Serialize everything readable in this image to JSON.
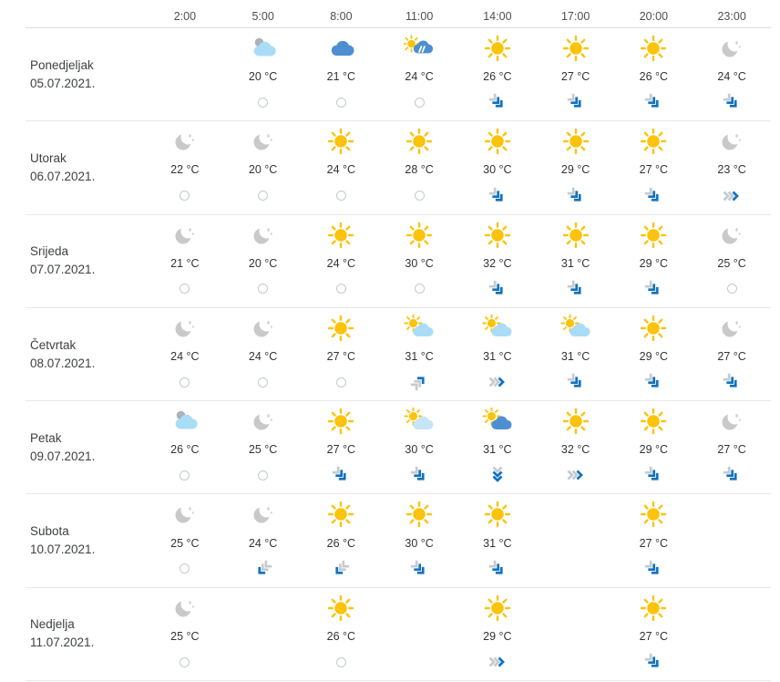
{
  "table": {
    "times": [
      "2:00",
      "5:00",
      "8:00",
      "11:00",
      "14:00",
      "17:00",
      "20:00",
      "23:00"
    ],
    "temperature_unit": "°C",
    "days": [
      {
        "name": "Ponedjeljak",
        "date": "05.07.2021.",
        "cells": [
          null,
          {
            "icon": "cloudy-light",
            "temp": "20 °C",
            "wind": {
              "type": "calm"
            }
          },
          {
            "icon": "cloudy-dark",
            "temp": "21 °C",
            "wind": {
              "type": "calm"
            }
          },
          {
            "icon": "sun-rain",
            "temp": "24 °C",
            "wind": {
              "type": "calm"
            }
          },
          {
            "icon": "sunny",
            "temp": "26 °C",
            "wind": {
              "type": "arrow",
              "dir": "se",
              "strength": 2
            }
          },
          {
            "icon": "sunny",
            "temp": "27 °C",
            "wind": {
              "type": "arrow",
              "dir": "se",
              "strength": 2
            }
          },
          {
            "icon": "sunny",
            "temp": "26 °C",
            "wind": {
              "type": "arrow",
              "dir": "se",
              "strength": 2
            }
          },
          {
            "icon": "clear-night",
            "temp": "24 °C",
            "wind": {
              "type": "arrow",
              "dir": "se",
              "strength": 2
            }
          }
        ]
      },
      {
        "name": "Utorak",
        "date": "06.07.2021.",
        "cells": [
          {
            "icon": "clear-night",
            "temp": "22 °C",
            "wind": {
              "type": "calm"
            }
          },
          {
            "icon": "clear-night",
            "temp": "20 °C",
            "wind": {
              "type": "calm"
            }
          },
          {
            "icon": "sunny",
            "temp": "24 °C",
            "wind": {
              "type": "calm"
            }
          },
          {
            "icon": "sunny",
            "temp": "28 °C",
            "wind": {
              "type": "calm"
            }
          },
          {
            "icon": "sunny",
            "temp": "30 °C",
            "wind": {
              "type": "arrow",
              "dir": "se",
              "strength": 2
            }
          },
          {
            "icon": "sunny",
            "temp": "29 °C",
            "wind": {
              "type": "arrow",
              "dir": "se",
              "strength": 2
            }
          },
          {
            "icon": "sunny",
            "temp": "27 °C",
            "wind": {
              "type": "arrow",
              "dir": "se",
              "strength": 2
            }
          },
          {
            "icon": "clear-night",
            "temp": "23 °C",
            "wind": {
              "type": "arrow",
              "dir": "e",
              "strength": 1
            }
          }
        ]
      },
      {
        "name": "Srijeda",
        "date": "07.07.2021.",
        "cells": [
          {
            "icon": "clear-night",
            "temp": "21 °C",
            "wind": {
              "type": "calm"
            }
          },
          {
            "icon": "clear-night",
            "temp": "20 °C",
            "wind": {
              "type": "calm"
            }
          },
          {
            "icon": "sunny",
            "temp": "24 °C",
            "wind": {
              "type": "calm"
            }
          },
          {
            "icon": "sunny",
            "temp": "30 °C",
            "wind": {
              "type": "calm"
            }
          },
          {
            "icon": "sunny",
            "temp": "32 °C",
            "wind": {
              "type": "arrow",
              "dir": "se",
              "strength": 2
            }
          },
          {
            "icon": "sunny",
            "temp": "31 °C",
            "wind": {
              "type": "arrow",
              "dir": "se",
              "strength": 2
            }
          },
          {
            "icon": "sunny",
            "temp": "29 °C",
            "wind": {
              "type": "arrow",
              "dir": "se",
              "strength": 2
            }
          },
          {
            "icon": "clear-night",
            "temp": "25 °C",
            "wind": {
              "type": "calm"
            }
          }
        ]
      },
      {
        "name": "Četvrtak",
        "date": "08.07.2021.",
        "cells": [
          {
            "icon": "clear-night",
            "temp": "24 °C",
            "wind": {
              "type": "calm"
            }
          },
          {
            "icon": "clear-night",
            "temp": "24 °C",
            "wind": {
              "type": "calm"
            }
          },
          {
            "icon": "sunny",
            "temp": "27 °C",
            "wind": {
              "type": "calm"
            }
          },
          {
            "icon": "sun-cloud",
            "temp": "31 °C",
            "wind": {
              "type": "arrow",
              "dir": "ne",
              "strength": 1
            }
          },
          {
            "icon": "sun-cloud",
            "temp": "31 °C",
            "wind": {
              "type": "arrow",
              "dir": "e",
              "strength": 1
            }
          },
          {
            "icon": "sun-cloud",
            "temp": "31 °C",
            "wind": {
              "type": "arrow",
              "dir": "se",
              "strength": 2
            }
          },
          {
            "icon": "sunny",
            "temp": "29 °C",
            "wind": {
              "type": "arrow",
              "dir": "se",
              "strength": 2
            }
          },
          {
            "icon": "clear-night",
            "temp": "27 °C",
            "wind": {
              "type": "arrow",
              "dir": "se",
              "strength": 2
            }
          }
        ]
      },
      {
        "name": "Petak",
        "date": "09.07.2021.",
        "cells": [
          {
            "icon": "cloudy-light",
            "temp": "26 °C",
            "wind": {
              "type": "calm"
            }
          },
          {
            "icon": "clear-night",
            "temp": "25 °C",
            "wind": {
              "type": "calm"
            }
          },
          {
            "icon": "sunny",
            "temp": "27 °C",
            "wind": {
              "type": "arrow",
              "dir": "se",
              "strength": 2
            }
          },
          {
            "icon": "sun-cloud-pale",
            "temp": "30 °C",
            "wind": {
              "type": "arrow",
              "dir": "se",
              "strength": 2
            }
          },
          {
            "icon": "sun-cloud-dark",
            "temp": "31 °C",
            "wind": {
              "type": "arrow",
              "dir": "s",
              "strength": 2
            }
          },
          {
            "icon": "sunny",
            "temp": "32 °C",
            "wind": {
              "type": "arrow",
              "dir": "e",
              "strength": 1
            }
          },
          {
            "icon": "sunny",
            "temp": "29 °C",
            "wind": {
              "type": "arrow",
              "dir": "se",
              "strength": 2
            }
          },
          {
            "icon": "clear-night",
            "temp": "27 °C",
            "wind": {
              "type": "arrow",
              "dir": "se",
              "strength": 2
            }
          }
        ]
      },
      {
        "name": "Subota",
        "date": "10.07.2021.",
        "cells": [
          {
            "icon": "clear-night",
            "temp": "25 °C",
            "wind": {
              "type": "calm"
            }
          },
          {
            "icon": "clear-night",
            "temp": "24 °C",
            "wind": {
              "type": "arrow",
              "dir": "sw",
              "strength": 1
            }
          },
          {
            "icon": "sunny",
            "temp": "26 °C",
            "wind": {
              "type": "arrow",
              "dir": "sw",
              "strength": 1
            }
          },
          {
            "icon": "sunny",
            "temp": "30 °C",
            "wind": {
              "type": "arrow",
              "dir": "se",
              "strength": 2
            }
          },
          {
            "icon": "sunny",
            "temp": "31 °C",
            "wind": {
              "type": "arrow",
              "dir": "se",
              "strength": 2
            }
          },
          null,
          {
            "icon": "sunny",
            "temp": "27 °C",
            "wind": {
              "type": "arrow",
              "dir": "se",
              "strength": 2
            }
          },
          null
        ]
      },
      {
        "name": "Nedjelja",
        "date": "11.07.2021.",
        "cells": [
          {
            "icon": "clear-night",
            "temp": "25 °C",
            "wind": {
              "type": "calm"
            }
          },
          null,
          {
            "icon": "sunny",
            "temp": "26 °C",
            "wind": {
              "type": "calm"
            }
          },
          null,
          {
            "icon": "sunny",
            "temp": "29 °C",
            "wind": {
              "type": "arrow",
              "dir": "e",
              "strength": 1
            }
          },
          null,
          {
            "icon": "sunny",
            "temp": "27 °C",
            "wind": {
              "type": "arrow",
              "dir": "se",
              "strength": 2
            }
          },
          null
        ]
      }
    ]
  },
  "colors": {
    "sun": "#fbc30b",
    "moon": "#c9c9c9",
    "moon_star": "#d4d4d4",
    "cloud_light": "#a9dcf7",
    "cloud_pale": "#c6e5f7",
    "cloud_dark": "#4d8fd1",
    "cloud_gray_puff": "#aeb2b5",
    "rain_streak": "#ffffff",
    "wind_blue": "#1272bf",
    "wind_gray": "#c5cbd0"
  }
}
